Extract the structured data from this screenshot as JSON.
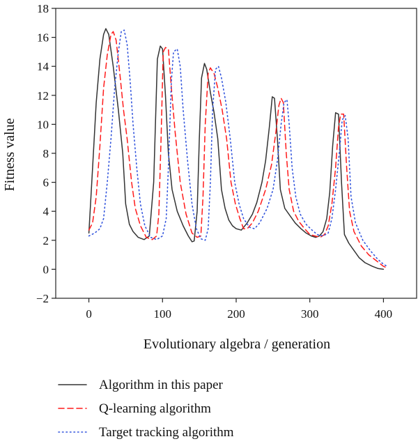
{
  "chart_data": {
    "type": "line",
    "title": "",
    "xlabel": "Evolutionary algebra / generation",
    "ylabel": "Fitness value",
    "xlim": [
      -45,
      445
    ],
    "ylim": [
      -2,
      18
    ],
    "xticks": [
      0,
      100,
      200,
      300,
      400
    ],
    "yticks": [
      -2,
      0,
      2,
      4,
      6,
      8,
      10,
      12,
      14,
      16,
      18
    ],
    "grid": false,
    "legend": "bottom",
    "series": [
      {
        "name": "Algorithm in this paper",
        "color": "#333333",
        "style": "solid",
        "points": [
          [
            0,
            2.5
          ],
          [
            5,
            7
          ],
          [
            10,
            11.5
          ],
          [
            15,
            14.5
          ],
          [
            20,
            16.2
          ],
          [
            23,
            16.6
          ],
          [
            27,
            16.2
          ],
          [
            33,
            14
          ],
          [
            40,
            11
          ],
          [
            46,
            8
          ],
          [
            50,
            4.5
          ],
          [
            55,
            3.1
          ],
          [
            60,
            2.6
          ],
          [
            67,
            2.2
          ],
          [
            75,
            2.05
          ],
          [
            82,
            2.3
          ],
          [
            88,
            6
          ],
          [
            93,
            14.5
          ],
          [
            97,
            15.4
          ],
          [
            100,
            15.2
          ],
          [
            104,
            12
          ],
          [
            108,
            8
          ],
          [
            113,
            5.5
          ],
          [
            120,
            4
          ],
          [
            128,
            3
          ],
          [
            135,
            2.3
          ],
          [
            140,
            1.9
          ],
          [
            143,
            1.95
          ],
          [
            147,
            4
          ],
          [
            150,
            9
          ],
          [
            153,
            13.2
          ],
          [
            157,
            14.2
          ],
          [
            160,
            13.8
          ],
          [
            165,
            12.2
          ],
          [
            170,
            10.8
          ],
          [
            175,
            9
          ],
          [
            180,
            5.5
          ],
          [
            185,
            4.2
          ],
          [
            190,
            3.4
          ],
          [
            195,
            3
          ],
          [
            200,
            2.8
          ],
          [
            207,
            2.7
          ],
          [
            215,
            3.2
          ],
          [
            222,
            3.8
          ],
          [
            228,
            4.6
          ],
          [
            235,
            6
          ],
          [
            240,
            7.5
          ],
          [
            245,
            9.8
          ],
          [
            249,
            11.9
          ],
          [
            252,
            11.8
          ],
          [
            256,
            9
          ],
          [
            260,
            5.5
          ],
          [
            266,
            4.2
          ],
          [
            273,
            3.7
          ],
          [
            280,
            3.2
          ],
          [
            288,
            2.8
          ],
          [
            295,
            2.5
          ],
          [
            302,
            2.3
          ],
          [
            308,
            2.2
          ],
          [
            313,
            2.3
          ],
          [
            318,
            2.6
          ],
          [
            323,
            3.5
          ],
          [
            327,
            5.3
          ],
          [
            331,
            8.5
          ],
          [
            335,
            10.8
          ],
          [
            339,
            10.7
          ],
          [
            343,
            6
          ],
          [
            347,
            2.4
          ],
          [
            353,
            1.8
          ],
          [
            360,
            1.3
          ],
          [
            367,
            0.8
          ],
          [
            375,
            0.45
          ],
          [
            385,
            0.2
          ],
          [
            393,
            0.05
          ],
          [
            400,
            0
          ]
        ]
      },
      {
        "name": "Q-learning algorithm",
        "color": "#ff1a1a",
        "style": "dashed",
        "points": [
          [
            0,
            2.7
          ],
          [
            5,
            3.2
          ],
          [
            10,
            5
          ],
          [
            15,
            8.5
          ],
          [
            20,
            12.5
          ],
          [
            25,
            14.8
          ],
          [
            30,
            16.2
          ],
          [
            33,
            16.4
          ],
          [
            37,
            15.8
          ],
          [
            42,
            13.5
          ],
          [
            47,
            11
          ],
          [
            52,
            9
          ],
          [
            58,
            6
          ],
          [
            63,
            4.2
          ],
          [
            70,
            3
          ],
          [
            78,
            2.2
          ],
          [
            86,
            2.05
          ],
          [
            92,
            2.3
          ],
          [
            95,
            3.8
          ],
          [
            98,
            9
          ],
          [
            101,
            15
          ],
          [
            104,
            15.3
          ],
          [
            108,
            15.2
          ],
          [
            112,
            12.5
          ],
          [
            117,
            9.5
          ],
          [
            124,
            6
          ],
          [
            132,
            3.8
          ],
          [
            140,
            2.5
          ],
          [
            147,
            2.2
          ],
          [
            152,
            2.3
          ],
          [
            155,
            5
          ],
          [
            158,
            10
          ],
          [
            162,
            13.5
          ],
          [
            165,
            13.9
          ],
          [
            170,
            13.5
          ],
          [
            175,
            12.5
          ],
          [
            181,
            11
          ],
          [
            187,
            9
          ],
          [
            193,
            6
          ],
          [
            199,
            4.5
          ],
          [
            205,
            3.5
          ],
          [
            210,
            2.8
          ],
          [
            215,
            2.8
          ],
          [
            222,
            3.2
          ],
          [
            230,
            4
          ],
          [
            240,
            5.5
          ],
          [
            248,
            7.2
          ],
          [
            254,
            9.5
          ],
          [
            258,
            11.3
          ],
          [
            261,
            11.8
          ],
          [
            264,
            11.5
          ],
          [
            268,
            8
          ],
          [
            272,
            5.5
          ],
          [
            278,
            4
          ],
          [
            285,
            3.3
          ],
          [
            293,
            2.8
          ],
          [
            300,
            2.4
          ],
          [
            307,
            2.3
          ],
          [
            314,
            2.2
          ],
          [
            320,
            2.4
          ],
          [
            325,
            3
          ],
          [
            330,
            4.5
          ],
          [
            335,
            7
          ],
          [
            339,
            9.8
          ],
          [
            342,
            10.7
          ],
          [
            346,
            10.7
          ],
          [
            350,
            7
          ],
          [
            354,
            4
          ],
          [
            360,
            2.6
          ],
          [
            370,
            1.6
          ],
          [
            380,
            1
          ],
          [
            390,
            0.6
          ],
          [
            400,
            0.2
          ],
          [
            405,
            0.1
          ]
        ]
      },
      {
        "name": "Target tracking algorithm",
        "color": "#3355dd",
        "style": "dotted",
        "points": [
          [
            0,
            2.3
          ],
          [
            8,
            2.5
          ],
          [
            15,
            2.8
          ],
          [
            20,
            3.5
          ],
          [
            25,
            6
          ],
          [
            30,
            9
          ],
          [
            35,
            12.5
          ],
          [
            40,
            15
          ],
          [
            44,
            16.4
          ],
          [
            48,
            16.5
          ],
          [
            52,
            15.5
          ],
          [
            56,
            13
          ],
          [
            60,
            10
          ],
          [
            65,
            7
          ],
          [
            70,
            4.5
          ],
          [
            76,
            3
          ],
          [
            84,
            2.2
          ],
          [
            92,
            2.05
          ],
          [
            100,
            2.3
          ],
          [
            105,
            3.5
          ],
          [
            108,
            7
          ],
          [
            112,
            13
          ],
          [
            115,
            15
          ],
          [
            120,
            15.2
          ],
          [
            124,
            14
          ],
          [
            128,
            11
          ],
          [
            134,
            7.5
          ],
          [
            140,
            4.5
          ],
          [
            146,
            2.8
          ],
          [
            152,
            2.1
          ],
          [
            158,
            2
          ],
          [
            162,
            2.8
          ],
          [
            165,
            6
          ],
          [
            168,
            11
          ],
          [
            172,
            13.8
          ],
          [
            176,
            14
          ],
          [
            180,
            13.2
          ],
          [
            186,
            11.5
          ],
          [
            192,
            9
          ],
          [
            198,
            6
          ],
          [
            204,
            4.5
          ],
          [
            210,
            3.5
          ],
          [
            218,
            2.9
          ],
          [
            225,
            2.8
          ],
          [
            232,
            3.2
          ],
          [
            242,
            4.2
          ],
          [
            250,
            5.5
          ],
          [
            256,
            7.5
          ],
          [
            261,
            10
          ],
          [
            265,
            11.5
          ],
          [
            269,
            11.7
          ],
          [
            272,
            10
          ],
          [
            276,
            7
          ],
          [
            281,
            5
          ],
          [
            287,
            3.8
          ],
          [
            295,
            3.1
          ],
          [
            303,
            2.7
          ],
          [
            310,
            2.4
          ],
          [
            318,
            2.3
          ],
          [
            325,
            2.5
          ],
          [
            330,
            3.5
          ],
          [
            335,
            5.5
          ],
          [
            340,
            8
          ],
          [
            344,
            10.3
          ],
          [
            348,
            10.6
          ],
          [
            352,
            9
          ],
          [
            356,
            5
          ],
          [
            362,
            3.2
          ],
          [
            372,
            2
          ],
          [
            382,
            1.3
          ],
          [
            392,
            0.7
          ],
          [
            400,
            0.35
          ],
          [
            405,
            0.2
          ]
        ]
      }
    ]
  }
}
